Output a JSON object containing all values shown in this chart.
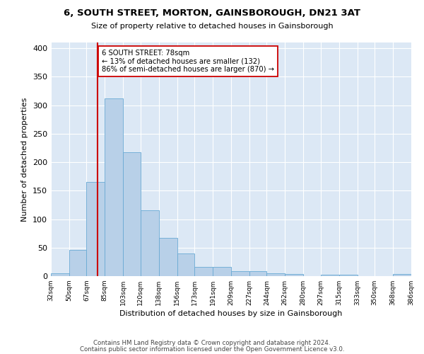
{
  "title": "6, SOUTH STREET, MORTON, GAINSBOROUGH, DN21 3AT",
  "subtitle": "Size of property relative to detached houses in Gainsborough",
  "xlabel": "Distribution of detached houses by size in Gainsborough",
  "ylabel": "Number of detached properties",
  "footer_line1": "Contains HM Land Registry data © Crown copyright and database right 2024.",
  "footer_line2": "Contains public sector information licensed under the Open Government Licence v3.0.",
  "bin_edges": [
    32,
    50,
    67,
    85,
    103,
    120,
    138,
    156,
    173,
    191,
    209,
    227,
    244,
    262,
    280,
    297,
    315,
    333,
    350,
    368,
    386
  ],
  "bar_heights": [
    5,
    46,
    165,
    312,
    218,
    116,
    67,
    40,
    16,
    16,
    9,
    9,
    5,
    4,
    0,
    3,
    3,
    0,
    0,
    4
  ],
  "bar_color": "#b8d0e8",
  "bar_edge_color": "#6aaad4",
  "property_size": 78,
  "vline_color": "#cc0000",
  "annotation_text": "6 SOUTH STREET: 78sqm\n← 13% of detached houses are smaller (132)\n86% of semi-detached houses are larger (870) →",
  "annotation_box_color": "white",
  "annotation_box_edgecolor": "#cc0000",
  "ylim": [
    0,
    410
  ],
  "plot_background_color": "#dce8f5",
  "grid_color": "white",
  "tick_labels": [
    "32sqm",
    "50sqm",
    "67sqm",
    "85sqm",
    "103sqm",
    "120sqm",
    "138sqm",
    "156sqm",
    "173sqm",
    "191sqm",
    "209sqm",
    "227sqm",
    "244sqm",
    "262sqm",
    "280sqm",
    "297sqm",
    "315sqm",
    "333sqm",
    "350sqm",
    "368sqm",
    "386sqm"
  ]
}
